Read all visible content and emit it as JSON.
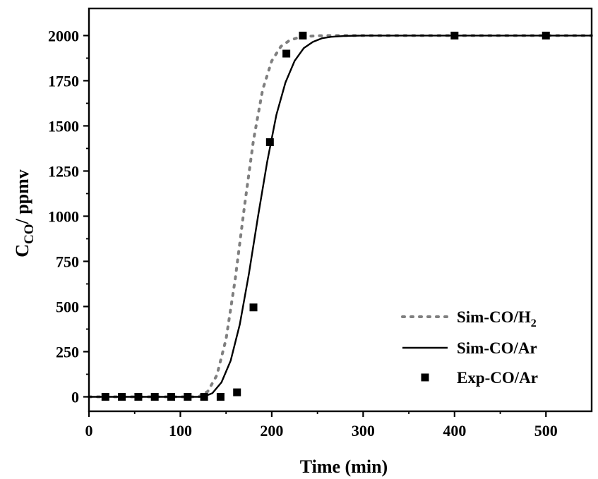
{
  "chart_data": {
    "type": "line",
    "title": "",
    "xlabel": "Time (min)",
    "ylabel_main": "C",
    "ylabel_sub": "CO",
    "ylabel_rest": "/ ppmv",
    "xlim": [
      0,
      550
    ],
    "ylim": [
      -80,
      2150
    ],
    "xticks": [
      0,
      100,
      200,
      300,
      400,
      500
    ],
    "yticks": [
      0,
      250,
      500,
      750,
      1000,
      1250,
      1500,
      1750,
      2000
    ],
    "legend_position": "bottom-right",
    "series": [
      {
        "name": "Sim-CO/H2",
        "label_main": "Sim-CO/H",
        "label_sub": "2",
        "style": "dotted",
        "color": "#7f7f7f",
        "x": [
          0,
          120,
          130,
          140,
          150,
          160,
          170,
          180,
          190,
          200,
          210,
          220,
          230,
          240,
          250,
          260,
          270,
          280,
          290,
          550
        ],
        "y": [
          0,
          0,
          30,
          120,
          320,
          650,
          1050,
          1420,
          1700,
          1860,
          1940,
          1975,
          1990,
          1996,
          1999,
          2000,
          2000,
          2000,
          2000,
          2000
        ]
      },
      {
        "name": "Sim-CO/Ar",
        "style": "solid",
        "color": "#000000",
        "x": [
          0,
          125,
          135,
          145,
          155,
          165,
          175,
          185,
          195,
          205,
          215,
          225,
          235,
          245,
          255,
          265,
          280,
          300,
          320,
          550
        ],
        "y": [
          0,
          0,
          20,
          80,
          200,
          400,
          680,
          1000,
          1300,
          1560,
          1740,
          1860,
          1930,
          1965,
          1985,
          1993,
          1998,
          2000,
          2000,
          2000
        ]
      },
      {
        "name": "Exp-CO/Ar",
        "style": "marker-square",
        "color": "#000000",
        "x": [
          18,
          36,
          54,
          72,
          90,
          108,
          126,
          144,
          162,
          180,
          198,
          216,
          234,
          400,
          500
        ],
        "y": [
          0,
          0,
          0,
          0,
          0,
          0,
          0,
          0,
          25,
          495,
          1410,
          1900,
          2000,
          2000,
          2000
        ]
      }
    ]
  }
}
